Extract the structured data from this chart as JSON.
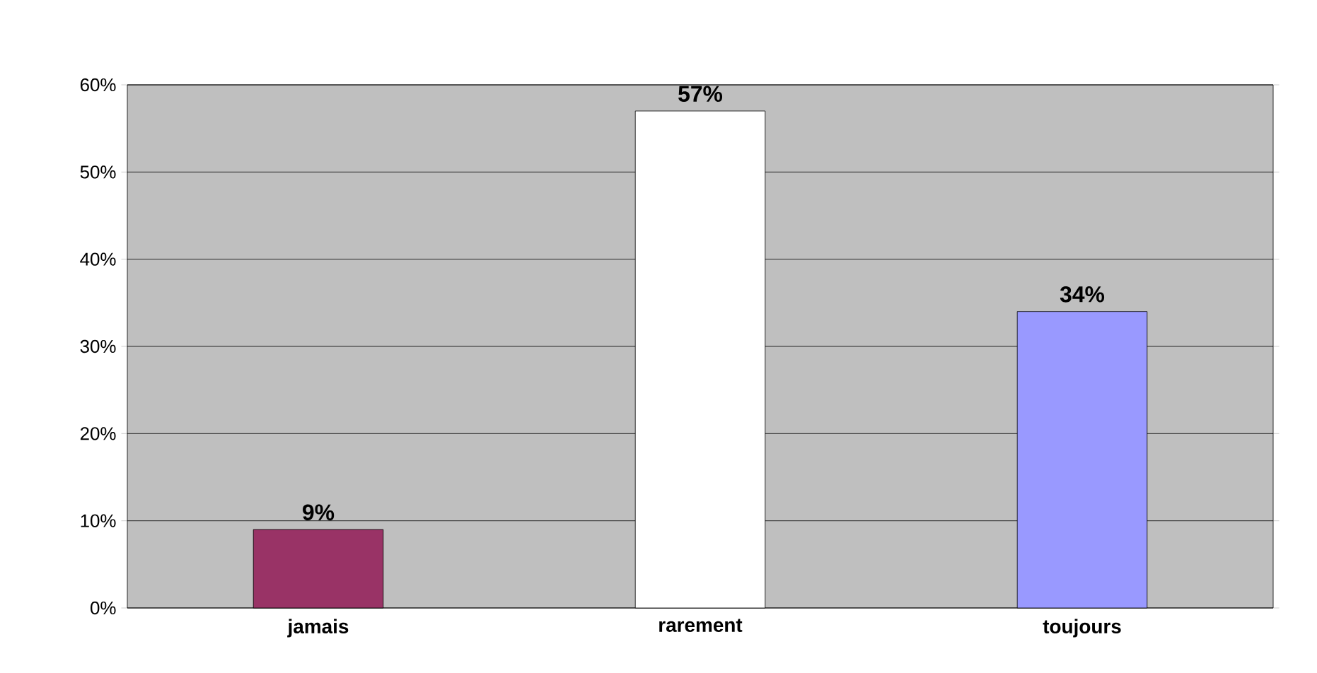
{
  "chart_data": {
    "type": "bar",
    "categories": [
      "jamais",
      "rarement",
      "toujours"
    ],
    "values": [
      9,
      57,
      34
    ],
    "colors": [
      "#993366",
      "#ffffff",
      "#9999ff"
    ],
    "ylim": [
      0,
      60
    ],
    "yticks": [
      {
        "value": 0,
        "label": "0%"
      },
      {
        "value": 10,
        "label": "10%"
      },
      {
        "value": 20,
        "label": "20%"
      },
      {
        "value": 30,
        "label": "30%"
      },
      {
        "value": 40,
        "label": "40%"
      },
      {
        "value": 50,
        "label": "50%"
      },
      {
        "value": 60,
        "label": "60%"
      }
    ],
    "value_labels": [
      "9%",
      "57%",
      "34%"
    ],
    "grid": "y"
  }
}
